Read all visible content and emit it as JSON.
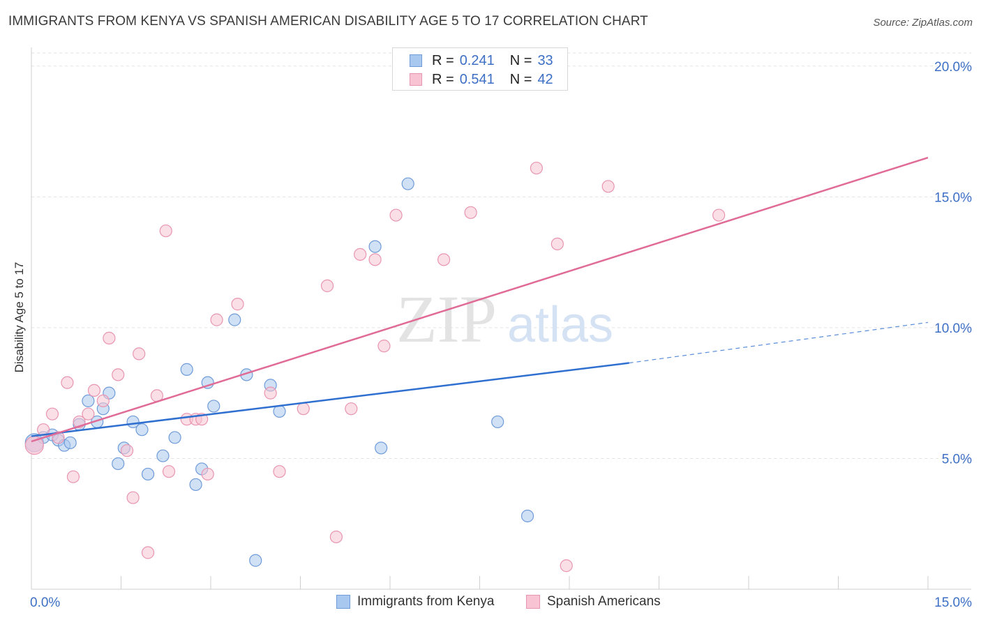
{
  "title": "IMMIGRANTS FROM KENYA VS SPANISH AMERICAN DISABILITY AGE 5 TO 17 CORRELATION CHART",
  "source": "Source: ZipAtlas.com",
  "watermark": {
    "zip": "ZIP",
    "atlas": "atlas"
  },
  "legend_top": [
    {
      "r_label": "R = ",
      "r_value": "0.241",
      "n_label": "N = ",
      "n_value": "33",
      "color": "#a9c8ef",
      "border": "#6f9bd8"
    },
    {
      "r_label": "R = ",
      "r_value": "0.541",
      "n_label": "N = ",
      "n_value": "42",
      "color": "#f8c4d4",
      "border": "#e895b0"
    }
  ],
  "chart_data": {
    "type": "scatter",
    "title": "IMMIGRANTS FROM KENYA VS SPANISH AMERICAN DISABILITY AGE 5 TO 17 CORRELATION CHART",
    "xlabel": "",
    "ylabel": "Disability Age 5 to 17",
    "xlim": [
      0,
      15
    ],
    "ylim": [
      0,
      20.5
    ],
    "x_tick_labels": [
      {
        "value": 0,
        "label": "0.0%"
      },
      {
        "value": 15,
        "label": "15.0%"
      }
    ],
    "y_tick_labels": [
      {
        "value": 5,
        "label": "5.0%"
      },
      {
        "value": 10,
        "label": "10.0%"
      },
      {
        "value": 15,
        "label": "15.0%"
      },
      {
        "value": 20,
        "label": "20.0%"
      }
    ],
    "grid": true,
    "legend_position": "bottom",
    "series": [
      {
        "name": "Immigrants from Kenya",
        "color": "#a9c8ef",
        "edge": "#6f9bd8",
        "line_color": "#2e6fcf",
        "trend": {
          "x0": 0,
          "y0": 5.85,
          "x1": 10.0,
          "y1": 8.65,
          "dash_to_x": 15,
          "dash_to_y": 10.2
        },
        "points": [
          [
            0.05,
            5.6
          ],
          [
            0.2,
            5.8
          ],
          [
            0.35,
            5.9
          ],
          [
            0.45,
            5.7
          ],
          [
            0.55,
            5.5
          ],
          [
            0.65,
            5.6
          ],
          [
            0.8,
            6.3
          ],
          [
            0.95,
            7.2
          ],
          [
            1.1,
            6.4
          ],
          [
            1.2,
            6.9
          ],
          [
            1.3,
            7.5
          ],
          [
            1.45,
            4.8
          ],
          [
            1.55,
            5.4
          ],
          [
            1.7,
            6.4
          ],
          [
            1.85,
            6.1
          ],
          [
            1.95,
            4.4
          ],
          [
            2.2,
            5.1
          ],
          [
            2.4,
            5.8
          ],
          [
            2.6,
            8.4
          ],
          [
            2.75,
            4.0
          ],
          [
            2.85,
            4.6
          ],
          [
            2.95,
            7.9
          ],
          [
            3.05,
            7.0
          ],
          [
            3.4,
            10.3
          ],
          [
            3.6,
            8.2
          ],
          [
            3.75,
            1.1
          ],
          [
            4.0,
            7.8
          ],
          [
            4.15,
            6.8
          ],
          [
            5.75,
            13.1
          ],
          [
            5.85,
            5.4
          ],
          [
            6.3,
            15.5
          ],
          [
            7.8,
            6.4
          ],
          [
            8.3,
            2.8
          ]
        ]
      },
      {
        "name": "Spanish Americans",
        "color": "#f8c4d4",
        "edge": "#e895b0",
        "line_color": "#e06b96",
        "trend": {
          "x0": 0,
          "y0": 5.65,
          "x1": 15,
          "y1": 16.5
        },
        "points": [
          [
            0.05,
            5.5
          ],
          [
            0.2,
            6.1
          ],
          [
            0.35,
            6.7
          ],
          [
            0.45,
            5.8
          ],
          [
            0.6,
            7.9
          ],
          [
            0.7,
            4.3
          ],
          [
            0.8,
            6.4
          ],
          [
            0.95,
            6.7
          ],
          [
            1.05,
            7.6
          ],
          [
            1.2,
            7.2
          ],
          [
            1.3,
            9.6
          ],
          [
            1.45,
            8.2
          ],
          [
            1.6,
            5.3
          ],
          [
            1.7,
            3.5
          ],
          [
            1.8,
            9.0
          ],
          [
            1.95,
            1.4
          ],
          [
            2.1,
            7.4
          ],
          [
            2.25,
            13.7
          ],
          [
            2.3,
            4.5
          ],
          [
            2.6,
            6.5
          ],
          [
            2.75,
            6.5
          ],
          [
            2.85,
            6.5
          ],
          [
            2.95,
            4.4
          ],
          [
            3.1,
            10.3
          ],
          [
            3.45,
            10.9
          ],
          [
            4.0,
            7.5
          ],
          [
            4.15,
            4.5
          ],
          [
            4.55,
            6.9
          ],
          [
            4.95,
            11.6
          ],
          [
            5.1,
            2.0
          ],
          [
            5.35,
            6.9
          ],
          [
            5.5,
            12.8
          ],
          [
            5.75,
            12.6
          ],
          [
            5.9,
            9.3
          ],
          [
            6.1,
            14.3
          ],
          [
            6.9,
            12.6
          ],
          [
            7.35,
            14.4
          ],
          [
            8.45,
            16.1
          ],
          [
            8.8,
            13.2
          ],
          [
            8.95,
            0.9
          ],
          [
            9.65,
            15.4
          ],
          [
            11.5,
            14.3
          ]
        ]
      }
    ]
  },
  "legend_bottom": [
    {
      "label": "Immigrants from Kenya",
      "color": "#a9c8ef",
      "border": "#6f9bd8"
    },
    {
      "label": "Spanish Americans",
      "color": "#f8c4d4",
      "border": "#e895b0"
    }
  ]
}
